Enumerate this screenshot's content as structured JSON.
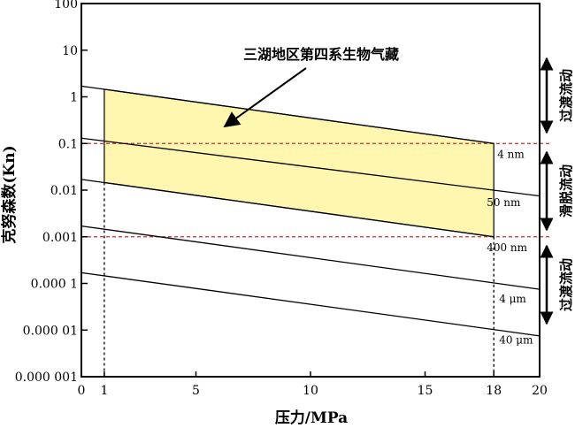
{
  "chart_data": {
    "type": "line",
    "x_scale": "linear",
    "y_scale": "log",
    "xlabel": "压力/MPa",
    "ylabel": "克努森数(Kn)",
    "xlim": [
      0,
      20
    ],
    "ylim": [
      1e-06,
      100
    ],
    "x_ticks": [
      {
        "value": 0,
        "label": "0"
      },
      {
        "value": 1,
        "label": "1"
      },
      {
        "value": 5,
        "label": "5"
      },
      {
        "value": 10,
        "label": "10"
      },
      {
        "value": 15,
        "label": "15"
      },
      {
        "value": 18,
        "label": "18"
      },
      {
        "value": 20,
        "label": "20"
      }
    ],
    "y_ticks": [
      {
        "value": 100,
        "label": "100"
      },
      {
        "value": 10,
        "label": "10"
      },
      {
        "value": 1,
        "label": "1"
      },
      {
        "value": 0.1,
        "label": "0.1"
      },
      {
        "value": 0.01,
        "label": "0.01"
      },
      {
        "value": 0.001,
        "label": "0.001"
      },
      {
        "value": 0.0001,
        "label": "0.000 1"
      },
      {
        "value": 1e-05,
        "label": "0.000 01"
      },
      {
        "value": 1e-06,
        "label": "0.000 001"
      }
    ],
    "series": [
      {
        "name": "4 nm",
        "x": [
          0,
          18
        ],
        "y": [
          1.7,
          0.1
        ]
      },
      {
        "name": "50 nm",
        "x": [
          0,
          20
        ],
        "y": [
          0.13,
          0.0075
        ]
      },
      {
        "name": "400 nm",
        "x": [
          0,
          18
        ],
        "y": [
          0.017,
          0.001
        ]
      },
      {
        "name": "4 μm",
        "x": [
          0,
          20
        ],
        "y": [
          0.0017,
          7.5e-05
        ]
      },
      {
        "name": "40 μm",
        "x": [
          0,
          20
        ],
        "y": [
          0.00017,
          7.5e-06
        ]
      }
    ],
    "shaded_region": {
      "x_range": [
        1,
        18
      ],
      "upper": "4 nm",
      "lower": "400 nm",
      "color": "#fff6b0"
    },
    "reference_lines": [
      {
        "axis": "y",
        "value": 0.1,
        "style": "dashed",
        "color": "#d42a2a"
      },
      {
        "axis": "y",
        "value": 0.001,
        "style": "dashed",
        "color": "#d42a2a"
      },
      {
        "axis": "x",
        "value": 1,
        "style": "dashed",
        "color": "#000000"
      },
      {
        "axis": "x",
        "value": 18,
        "style": "dashed",
        "color": "#000000"
      }
    ],
    "annotation": {
      "text": "三湖地区第四系生物气藏"
    },
    "regimes": [
      {
        "label": "过渡流动",
        "range": [
          0.1,
          100
        ]
      },
      {
        "label": "滑脱流动",
        "range": [
          0.001,
          0.1
        ]
      },
      {
        "label": "过渡流动",
        "range": [
          1e-06,
          0.001
        ]
      }
    ]
  }
}
